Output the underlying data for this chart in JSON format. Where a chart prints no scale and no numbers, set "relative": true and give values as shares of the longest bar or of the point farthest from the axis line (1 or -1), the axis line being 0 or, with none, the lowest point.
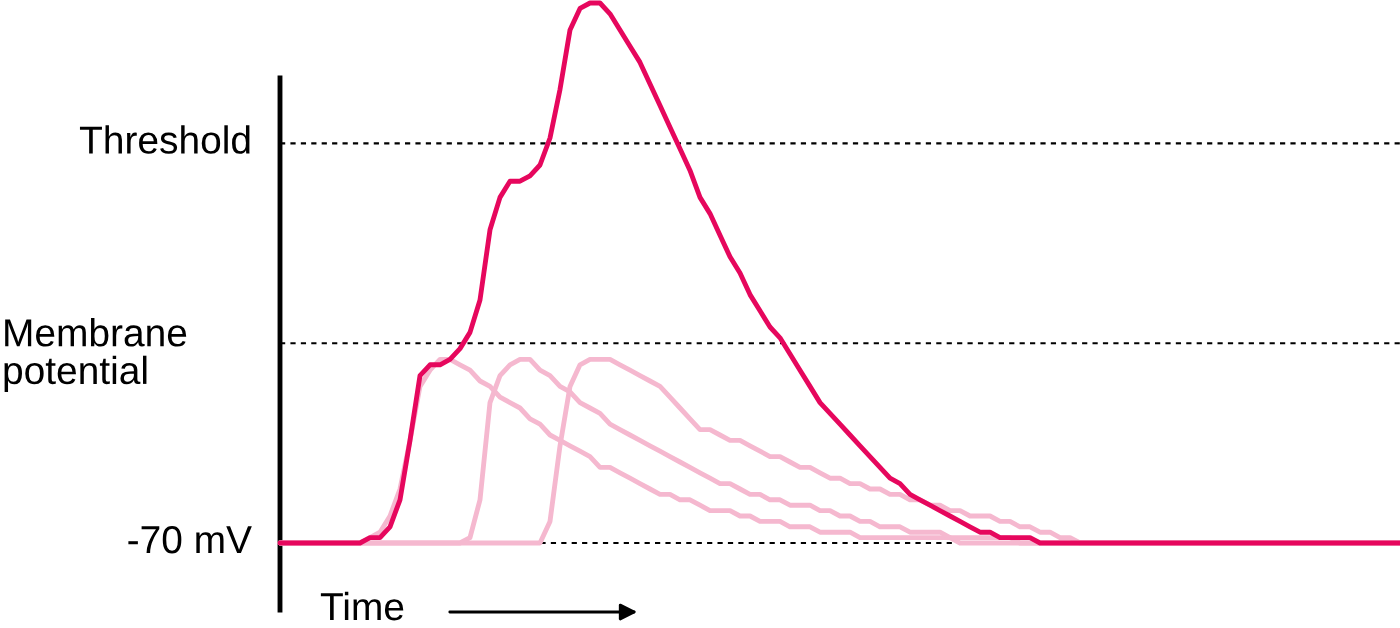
{
  "chart_data": {
    "type": "line",
    "relative": true,
    "xlabel": "Time",
    "ylabel": "Membrane\npotential",
    "categories": [
      null,
      null,
      null,
      null,
      null,
      null,
      null,
      null,
      null,
      null,
      null,
      null,
      null,
      null,
      null,
      null,
      null,
      null,
      null,
      null,
      null,
      null,
      null,
      null,
      null,
      null,
      null,
      null,
      null,
      null,
      null,
      null,
      null,
      null,
      null,
      null,
      null,
      null,
      null,
      null,
      null,
      null,
      null,
      null,
      null,
      null,
      null,
      null,
      null,
      null,
      null,
      null,
      null,
      null,
      null,
      null,
      null,
      null,
      null,
      null,
      null,
      null,
      null,
      null,
      null,
      null,
      null,
      null,
      null,
      null,
      null,
      null,
      null,
      null,
      null,
      null,
      null,
      null,
      null,
      null,
      null,
      null,
      null,
      null,
      null,
      null,
      null,
      null,
      null,
      null,
      null,
      null,
      null,
      null,
      null,
      null,
      null,
      null,
      null,
      null,
      null,
      null,
      null,
      null,
      null,
      null,
      null,
      null,
      null,
      null,
      null,
      null,
      null
    ],
    "series": [
      {
        "color": "#f5b8cf",
        "values": [
          0,
          0,
          0,
          0,
          0,
          0,
          0,
          0,
          0,
          0.01,
          0.02,
          0.05,
          0.1,
          0.19,
          0.29,
          0.32,
          0.34,
          0.34,
          0.33,
          0.32,
          0.3,
          0.29,
          0.27,
          0.26,
          0.25,
          0.23,
          0.22,
          0.2,
          0.19,
          0.18,
          0.17,
          0.16,
          0.14,
          0.14,
          0.13,
          0.12,
          0.11,
          0.1,
          0.09,
          0.09,
          0.08,
          0.08,
          0.07,
          0.06,
          0.06,
          0.06,
          0.05,
          0.05,
          0.04,
          0.04,
          0.04,
          0.03,
          0.03,
          0.03,
          0.02,
          0.02,
          0.02,
          0.02,
          0.01,
          0.01,
          0.01,
          0.01,
          0.01,
          0.01,
          0.01,
          0.01,
          0.01,
          0.01,
          0,
          0,
          0,
          0,
          0,
          0,
          0,
          0,
          0,
          0,
          0,
          0,
          0,
          0,
          0,
          0,
          0,
          0,
          0,
          0,
          0,
          0,
          0,
          0,
          0,
          0,
          0,
          0,
          0,
          0,
          0,
          0,
          0,
          0,
          0,
          0,
          0,
          0,
          0,
          0,
          0,
          0,
          0,
          0,
          0
        ]
      },
      {
        "color": "#f5b8cf",
        "values": [
          0,
          0,
          0,
          0,
          0,
          0,
          0,
          0,
          0,
          0,
          0,
          0,
          0,
          0,
          0,
          0,
          0,
          0,
          0,
          0.01,
          0.08,
          0.26,
          0.31,
          0.33,
          0.34,
          0.34,
          0.32,
          0.31,
          0.29,
          0.28,
          0.26,
          0.25,
          0.24,
          0.22,
          0.21,
          0.2,
          0.19,
          0.18,
          0.17,
          0.16,
          0.15,
          0.14,
          0.13,
          0.12,
          0.11,
          0.11,
          0.1,
          0.09,
          0.09,
          0.08,
          0.08,
          0.07,
          0.07,
          0.07,
          0.06,
          0.06,
          0.05,
          0.05,
          0.04,
          0.04,
          0.03,
          0.03,
          0.03,
          0.02,
          0.02,
          0.02,
          0.02,
          0.01,
          0.01,
          0.01,
          0.01,
          0.01,
          0.01,
          0.01,
          0,
          0,
          0,
          0,
          0,
          0,
          0,
          0,
          0,
          0,
          0,
          0,
          0,
          0,
          0,
          0,
          0,
          0,
          0,
          0,
          0,
          0,
          0,
          0,
          0,
          0,
          0,
          0,
          0,
          0,
          0,
          0,
          0,
          0,
          0,
          0,
          0,
          0,
          0
        ]
      },
      {
        "color": "#f5b8cf",
        "values": [
          0,
          0,
          0,
          0,
          0,
          0,
          0,
          0,
          0,
          0,
          0,
          0,
          0,
          0,
          0,
          0,
          0,
          0,
          0,
          0,
          0,
          0,
          0,
          0,
          0,
          0,
          0,
          0.04,
          0.18,
          0.29,
          0.33,
          0.34,
          0.34,
          0.34,
          0.33,
          0.32,
          0.31,
          0.3,
          0.29,
          0.27,
          0.25,
          0.23,
          0.21,
          0.21,
          0.2,
          0.19,
          0.19,
          0.18,
          0.17,
          0.16,
          0.16,
          0.15,
          0.14,
          0.14,
          0.13,
          0.12,
          0.12,
          0.11,
          0.11,
          0.1,
          0.1,
          0.09,
          0.09,
          0.08,
          0.08,
          0.07,
          0.07,
          0.06,
          0.06,
          0.05,
          0.05,
          0.05,
          0.04,
          0.04,
          0.03,
          0.03,
          0.02,
          0.02,
          0.01,
          0.01,
          0,
          0,
          0,
          0,
          0,
          0,
          0,
          0,
          0,
          0,
          0,
          0,
          0,
          0,
          0,
          0,
          0,
          0,
          0,
          0,
          0,
          0,
          0,
          0,
          0,
          0,
          0,
          0,
          0,
          0,
          0,
          0,
          0
        ]
      },
      {
        "color": "#e6075d",
        "values": [
          0,
          0,
          0,
          0,
          0,
          0,
          0,
          0,
          0,
          0.01,
          0.01,
          0.03,
          0.08,
          0.19,
          0.31,
          0.33,
          0.33,
          0.34,
          0.36,
          0.39,
          0.45,
          0.58,
          0.64,
          0.67,
          0.67,
          0.68,
          0.7,
          0.75,
          0.84,
          0.95,
          0.99,
          1.0,
          1.0,
          0.98,
          0.95,
          0.92,
          0.89,
          0.85,
          0.81,
          0.77,
          0.73,
          0.69,
          0.64,
          0.61,
          0.57,
          0.53,
          0.5,
          0.46,
          0.43,
          0.4,
          0.38,
          0.35,
          0.32,
          0.29,
          0.26,
          0.24,
          0.22,
          0.2,
          0.18,
          0.16,
          0.14,
          0.12,
          0.11,
          0.09,
          0.08,
          0.07,
          0.06,
          0.05,
          0.04,
          0.03,
          0.02,
          0.02,
          0.01,
          0.01,
          0.01,
          0.01,
          0,
          0,
          0,
          0,
          0,
          0,
          0,
          0,
          0,
          0,
          0,
          0,
          0,
          0,
          0,
          0,
          0,
          0,
          0,
          0,
          0,
          0,
          0,
          0,
          0,
          0,
          0,
          0,
          0,
          0,
          0,
          0,
          0,
          0,
          0,
          0,
          0
        ]
      }
    ],
    "ref_lines": [
      {
        "axis": "y",
        "value": 0,
        "label": "-70 mV",
        "color": "#000000",
        "line_style": "dotted"
      },
      {
        "axis": "y",
        "value": 0.37,
        "color": "#000000",
        "line_style": "dotted"
      },
      {
        "axis": "y",
        "value": 0.74,
        "label": "Threshold",
        "color": "#000000",
        "line_style": "dotted"
      }
    ]
  }
}
